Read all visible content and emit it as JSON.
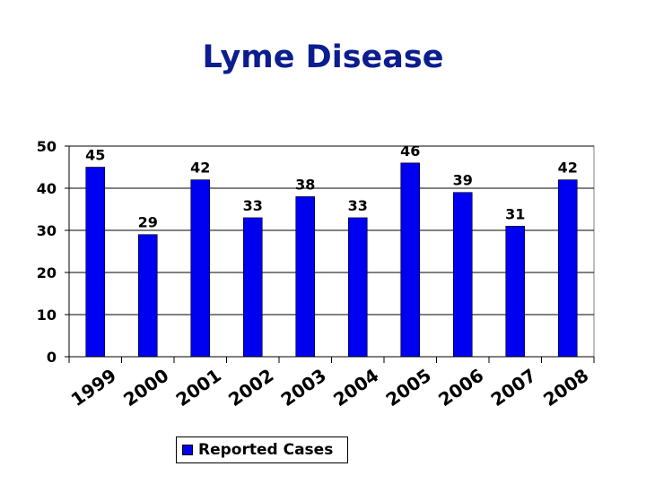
{
  "chart_data": {
    "type": "bar",
    "title": "Lyme Disease",
    "categories": [
      "1999",
      "2000",
      "2001",
      "2002",
      "2003",
      "2004",
      "2005",
      "2006",
      "2007",
      "2008"
    ],
    "series": [
      {
        "name": "Reported Cases",
        "values": [
          45,
          29,
          42,
          33,
          38,
          33,
          46,
          39,
          31,
          42
        ]
      }
    ],
    "ylim": [
      0,
      50
    ],
    "yticks": [
      "0",
      "10",
      "20",
      "30",
      "40",
      "50"
    ],
    "grid": true,
    "legend": "bottom",
    "colors": {
      "bar": "#0000f0",
      "title": "#0b1d8f",
      "grid": "#000000"
    }
  }
}
